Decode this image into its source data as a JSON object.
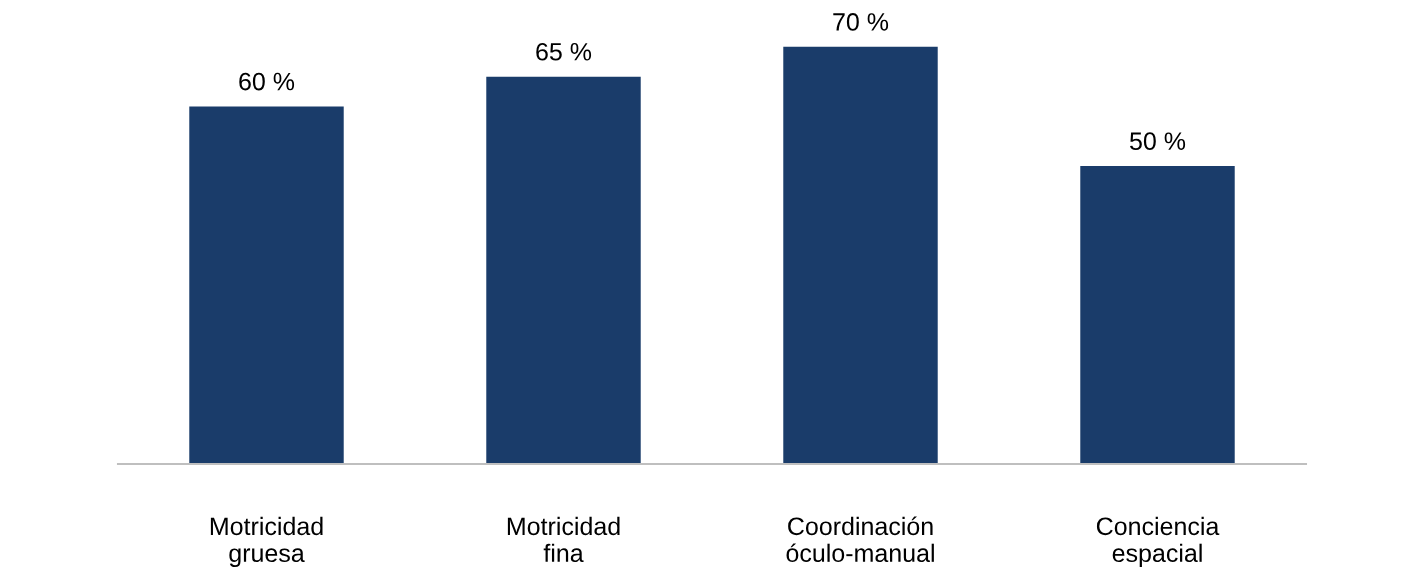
{
  "chart_data": {
    "type": "bar",
    "categories": [
      "Motricidad\ngruesa",
      "Motricidad\nfina",
      "Coordinación\nóculo-manual",
      "Conciencia\nespacial"
    ],
    "values": [
      60,
      65,
      70,
      50
    ],
    "value_labels": [
      "60 %",
      "65 %",
      "70 %",
      "50 %"
    ],
    "color": "#1a3c6a",
    "tick_labels": "x",
    "grid": false,
    "legend": false
  }
}
